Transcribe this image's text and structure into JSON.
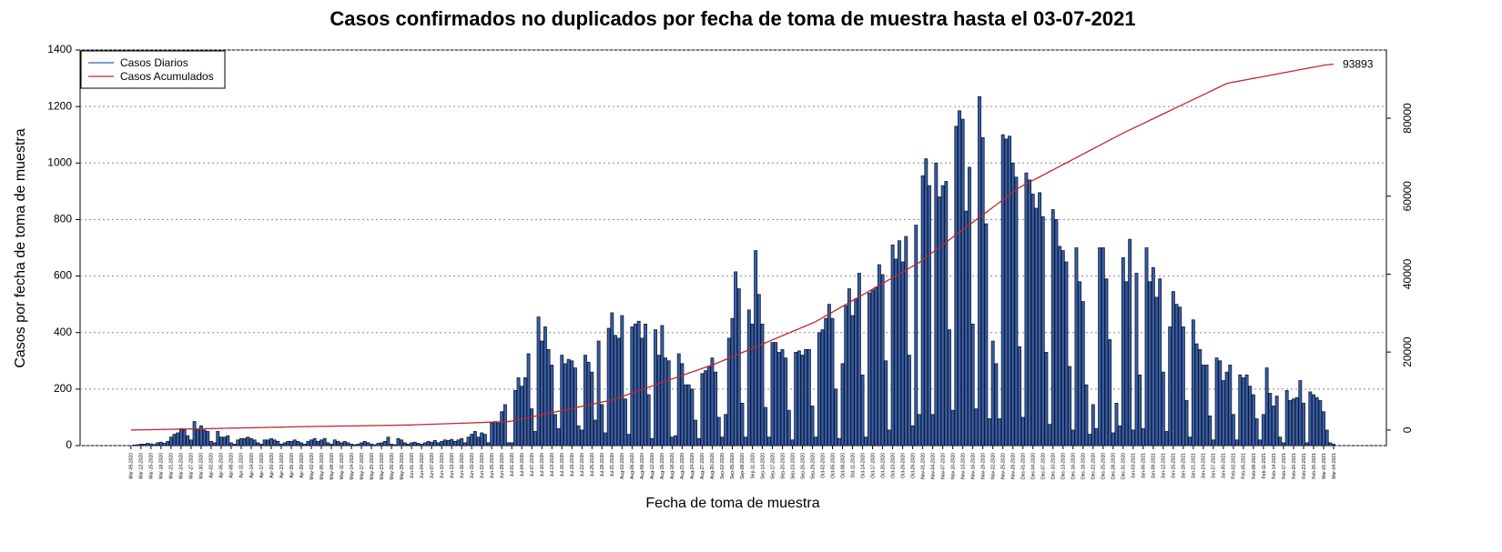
{
  "chart_data": {
    "type": "bar",
    "title": "Casos confirmados no duplicados por fecha de toma de muestra hasta el 03-07-2021",
    "xlabel": "Fecha de toma de muestra",
    "ylabel": "Casos por fecha de toma de muestra",
    "ylim": [
      0,
      1400
    ],
    "yticks": [
      0,
      200,
      400,
      600,
      800,
      1000,
      1200,
      1400
    ],
    "y2lim": [
      -4000,
      97500
    ],
    "y2ticks": [
      0,
      20000,
      40000,
      60000,
      80000
    ],
    "grid": true,
    "legend": "top-left",
    "categories": [
      "Mar-09-2020",
      null,
      null,
      "Mar-12-2020",
      null,
      null,
      "Mar-15-2020",
      null,
      null,
      "Mar-18-2020",
      null,
      null,
      "Mar-21-2020",
      null,
      null,
      "Mar-24-2020",
      null,
      null,
      "Mar-27-2020",
      null,
      null,
      "Mar-30-2020",
      null,
      null,
      "Apr-02-2020",
      null,
      null,
      "Apr-05-2020",
      null,
      null,
      "Apr-08-2020",
      null,
      null,
      "Apr-11-2020",
      null,
      null,
      "Apr-14-2020",
      null,
      null,
      "Apr-17-2020",
      null,
      null,
      "Apr-20-2020",
      null,
      null,
      "Apr-23-2020",
      null,
      null,
      "Apr-26-2020",
      null,
      null,
      "Apr-29-2020",
      null,
      null,
      "May-02-2020",
      null,
      null,
      "May-05-2020",
      null,
      null,
      "May-08-2020",
      null,
      null,
      "May-11-2020",
      null,
      null,
      "May-14-2020",
      null,
      null,
      "May-17-2020",
      null,
      null,
      "May-20-2020",
      null,
      null,
      "May-23-2020",
      null,
      null,
      "May-26-2020",
      null,
      null,
      "May-29-2020",
      null,
      null,
      "Jun-01-2020",
      null,
      null,
      "Jun-04-2020",
      null,
      null,
      "Jun-07-2020",
      null,
      null,
      "Jun-10-2020",
      null,
      null,
      "Jun-13-2020",
      null,
      null,
      "Jun-16-2020",
      null,
      null,
      "Jun-19-2020",
      null,
      null,
      "Jun-22-2020",
      null,
      null,
      "Jun-25-2020",
      null,
      null,
      "Jun-28-2020",
      null,
      null,
      "Jul-01-2020",
      null,
      null,
      "Jul-04-2020",
      null,
      null,
      "Jul-07-2020",
      null,
      null,
      "Jul-10-2020",
      null,
      null,
      "Jul-13-2020",
      null,
      null,
      "Jul-16-2020",
      null,
      null,
      "Jul-19-2020",
      null,
      null,
      "Jul-22-2020",
      null,
      null,
      "Jul-25-2020",
      null,
      null,
      "Jul-28-2020",
      null,
      null,
      "Jul-31-2020",
      null,
      null,
      "Aug-03-2020",
      null,
      null,
      "Aug-06-2020",
      null,
      null,
      "Aug-09-2020",
      null,
      null,
      "Aug-12-2020",
      null,
      null,
      "Aug-15-2020",
      null,
      null,
      "Aug-18-2020",
      null,
      null,
      "Aug-21-2020",
      null,
      null,
      "Aug-24-2020",
      null,
      null,
      "Aug-27-2020",
      null,
      null,
      "Aug-30-2020",
      null,
      null,
      "Sep-02-2020",
      null,
      null,
      "Sep-05-2020",
      null,
      null,
      "Sep-08-2020",
      null,
      null,
      "Sep-11-2020",
      null,
      null,
      "Sep-14-2020",
      null,
      null,
      "Sep-17-2020",
      null,
      null,
      "Sep-20-2020",
      null,
      null,
      "Sep-23-2020",
      null,
      null,
      "Sep-26-2020",
      null,
      null,
      "Sep-29-2020",
      null,
      null,
      "Oct-02-2020",
      null,
      null,
      "Oct-05-2020",
      null,
      null,
      "Oct-08-2020",
      null,
      null,
      "Oct-11-2020",
      null,
      null,
      "Oct-14-2020",
      null,
      null,
      "Oct-17-2020",
      null,
      null,
      "Oct-20-2020",
      null,
      null,
      "Oct-23-2020",
      null,
      null,
      "Oct-26-2020",
      null,
      null,
      "Oct-29-2020",
      null,
      null,
      "Nov-01-2020",
      null,
      null,
      "Nov-04-2020",
      null,
      null,
      "Nov-07-2020",
      null,
      null,
      "Nov-10-2020",
      null,
      null,
      "Nov-13-2020",
      null,
      null,
      "Nov-16-2020",
      null,
      null,
      "Nov-19-2020",
      null,
      null,
      "Nov-22-2020",
      null,
      null,
      "Nov-25-2020",
      null,
      null,
      "Nov-28-2020",
      null,
      null,
      "Dec-01-2020",
      null,
      null,
      "Dec-04-2020",
      null,
      null,
      "Dec-07-2020",
      null,
      null,
      "Dec-10-2020",
      null,
      null,
      "Dec-13-2020",
      null,
      null,
      "Dec-16-2020",
      null,
      null,
      "Dec-19-2020",
      null,
      null,
      "Dec-22-2020",
      null,
      null,
      "Dec-25-2020",
      null,
      null,
      "Dec-28-2020",
      null,
      null,
      "Dec-31-2020",
      null,
      null,
      "Jan-03-2021",
      null,
      null,
      "Jan-06-2021",
      null,
      null,
      "Jan-09-2021",
      null,
      null,
      "Jan-12-2021",
      null,
      null,
      "Jan-15-2021",
      null,
      null,
      "Jan-18-2021",
      null,
      null,
      "Jan-21-2021",
      null,
      null,
      "Jan-24-2021",
      null,
      null,
      "Jan-27-2021",
      null,
      null,
      "Jan-30-2021",
      null,
      null,
      "Feb-02-2021",
      null,
      null,
      "Feb-05-2021",
      null,
      null,
      "Feb-08-2021",
      null,
      null,
      "Feb-11-2021",
      null,
      null,
      "Feb-14-2021",
      null,
      null,
      "Feb-17-2021",
      null,
      null,
      "Feb-20-2021",
      null,
      null,
      "Feb-23-2021",
      null,
      null,
      "Feb-26-2021",
      null,
      null,
      "Mar-01-2021",
      null,
      null,
      "Mar-04-2021"
    ],
    "series": [
      {
        "name": "Casos Diarios",
        "color": "#3b5fa8",
        "values": [
          0,
          2,
          3,
          5,
          5,
          8,
          6,
          4,
          10,
          12,
          8,
          15,
          30,
          40,
          45,
          60,
          55,
          35,
          20,
          85,
          60,
          70,
          55,
          50,
          15,
          10,
          50,
          30,
          30,
          35,
          10,
          5,
          20,
          25,
          25,
          30,
          25,
          20,
          10,
          5,
          20,
          20,
          25,
          20,
          15,
          5,
          10,
          15,
          15,
          20,
          15,
          10,
          5,
          15,
          20,
          25,
          15,
          20,
          25,
          10,
          5,
          20,
          15,
          10,
          15,
          10,
          5,
          3,
          5,
          10,
          15,
          10,
          5,
          3,
          8,
          10,
          15,
          30,
          5,
          3,
          25,
          20,
          10,
          5,
          10,
          12,
          8,
          5,
          10,
          15,
          12,
          18,
          10,
          15,
          20,
          18,
          22,
          15,
          20,
          25,
          10,
          30,
          40,
          50,
          30,
          45,
          40,
          10,
          80,
          85,
          80,
          120,
          145,
          10,
          10,
          195,
          240,
          210,
          240,
          325,
          130,
          50,
          455,
          370,
          420,
          340,
          285,
          110,
          60,
          320,
          290,
          305,
          300,
          275,
          70,
          55,
          320,
          295,
          260,
          90,
          370,
          145,
          45,
          415,
          470,
          390,
          380,
          460,
          165,
          40,
          420,
          430,
          440,
          380,
          430,
          180,
          25,
          410,
          320,
          425,
          310,
          300,
          30,
          35,
          325,
          290,
          215,
          215,
          200,
          90,
          25,
          255,
          265,
          280,
          310,
          260,
          100,
          30,
          110,
          380,
          450,
          615,
          555,
          150,
          30,
          480,
          430,
          690,
          535,
          430,
          135,
          30,
          365,
          365,
          330,
          340,
          310,
          125,
          20,
          330,
          335,
          320,
          340,
          340,
          140,
          30,
          400,
          410,
          450,
          500,
          450,
          200,
          25,
          290,
          495,
          555,
          460,
          520,
          610,
          250,
          30,
          540,
          550,
          560,
          640,
          605,
          300,
          55,
          710,
          660,
          725,
          650,
          740,
          320,
          70,
          780,
          110,
          955,
          1015,
          920,
          110,
          1000,
          880,
          920,
          935,
          410,
          125,
          1130,
          1185,
          1155,
          830,
          985,
          430,
          130,
          1235,
          1090,
          785,
          95,
          370,
          290,
          95,
          1100,
          1085,
          1095,
          1000,
          950,
          350,
          100,
          965,
          940,
          890,
          840,
          895,
          810,
          330,
          75,
          835,
          800,
          705,
          690,
          650,
          280,
          55,
          700,
          580,
          510,
          215,
          40,
          145,
          60,
          700,
          700,
          590,
          375,
          45,
          150,
          70,
          665,
          580,
          730,
          55,
          610,
          250,
          60,
          700,
          580,
          630,
          525,
          590,
          260,
          50,
          420,
          545,
          500,
          490,
          420,
          160,
          30,
          445,
          360,
          340,
          285,
          285,
          105,
          20,
          310,
          300,
          230,
          260,
          285,
          110,
          20,
          250,
          240,
          250,
          210,
          180,
          95,
          20,
          110,
          275,
          185,
          140,
          175,
          30,
          10,
          195,
          160,
          165,
          170,
          230,
          150,
          10,
          190,
          180,
          170,
          160,
          120,
          55,
          10,
          5
        ]
      },
      {
        "name": "Casos Acumulados",
        "color": "#c0282d",
        "axis": "y2",
        "values": [
          0,
          15,
          30,
          45,
          60,
          75,
          90,
          105,
          120,
          135,
          150,
          165,
          180,
          195,
          210,
          225,
          240,
          255,
          270,
          285,
          300,
          315,
          330,
          348,
          366,
          384,
          402,
          420,
          438,
          456,
          474,
          492,
          510,
          528,
          546,
          564,
          582,
          600,
          618,
          636,
          654,
          672,
          690,
          708,
          726,
          744,
          762,
          780,
          798,
          816,
          834,
          852,
          870,
          883,
          896,
          909,
          922,
          935,
          948,
          961,
          974,
          987,
          1000,
          1013,
          1026,
          1039,
          1052,
          1065,
          1078,
          1091,
          1104,
          1117,
          1130,
          1143,
          1156,
          1169,
          1182,
          1195,
          1208,
          1221,
          1234,
          1247,
          1260,
          1273,
          1300,
          1330,
          1360,
          1390,
          1420,
          1450,
          1480,
          1510,
          1540,
          1570,
          1600,
          1630,
          1660,
          1690,
          1720,
          1750,
          1780,
          1810,
          1840,
          1870,
          1900,
          1930,
          1960,
          1990,
          2020,
          2050,
          2080,
          2110,
          2140,
          2170,
          2300,
          2480,
          2660,
          2840,
          3020,
          3200,
          3380,
          3560,
          3740,
          3920,
          4100,
          4280,
          4460,
          4640,
          4820,
          5000,
          5180,
          5360,
          5540,
          5720,
          5900,
          6080,
          6260,
          6440,
          6620,
          6800,
          6980,
          7160,
          7340,
          7520,
          7700,
          8000,
          8300,
          8600,
          8900,
          9200,
          9500,
          9800,
          10100,
          10400,
          10700,
          11000,
          11300,
          11600,
          11900,
          12200,
          12500,
          12800,
          13100,
          13400,
          13700,
          14000,
          14300,
          14600,
          14900,
          15200,
          15500,
          15800,
          16100,
          16400,
          16700,
          17000,
          17360,
          17720,
          18080,
          18440,
          18800,
          19160,
          19520,
          19880,
          20240,
          20600,
          20960,
          21320,
          21680,
          22040,
          22400,
          22760,
          23120,
          23480,
          23840,
          24200,
          24560,
          24920,
          25280,
          25640,
          26000,
          26360,
          26720,
          27080,
          27440,
          27800,
          28300,
          28790,
          29280,
          29770,
          30260,
          30750,
          31240,
          31730,
          32220,
          32710,
          33200,
          33690,
          34180,
          34670,
          35160,
          35650,
          36140,
          36630,
          37120,
          37610,
          38100,
          38590,
          39080,
          39570,
          40060,
          40550,
          41040,
          41530,
          42020,
          42510,
          43000,
          43700,
          44340,
          44980,
          45620,
          46260,
          46900,
          47540,
          48180,
          48820,
          49460,
          50100,
          50740,
          51380,
          52020,
          52660,
          53300,
          53940,
          54580,
          55220,
          55860,
          56500,
          57140,
          57780,
          58420,
          59060,
          59700,
          60340,
          60980,
          61620,
          62260,
          62700,
          63150,
          63600,
          64050,
          64500,
          64950,
          65400,
          65850,
          66300,
          66750,
          67200,
          67650,
          68100,
          68550,
          69000,
          69450,
          69900,
          70350,
          70800,
          71250,
          71700,
          72150,
          72600,
          73050,
          73500,
          73950,
          74400,
          74850,
          75300,
          75750,
          76200,
          76600,
          77010,
          77420,
          77830,
          78240,
          78650,
          79060,
          79470,
          79880,
          80290,
          80700,
          81110,
          81520,
          81930,
          82340,
          82750,
          83160,
          83570,
          83980,
          84390,
          84800,
          85210,
          85620,
          86030,
          86440,
          86850,
          87260,
          87670,
          88080,
          88490,
          88900,
          89100,
          89260,
          89420,
          89580,
          89740,
          89900,
          90060,
          90220,
          90380,
          90540,
          90700,
          90860,
          91020,
          91180,
          91340,
          91500,
          91660,
          91820,
          91980,
          92140,
          92300,
          92460,
          92620,
          92780,
          92940,
          93100,
          93260,
          93420,
          93600,
          93700,
          93800,
          93893
        ]
      }
    ]
  }
}
